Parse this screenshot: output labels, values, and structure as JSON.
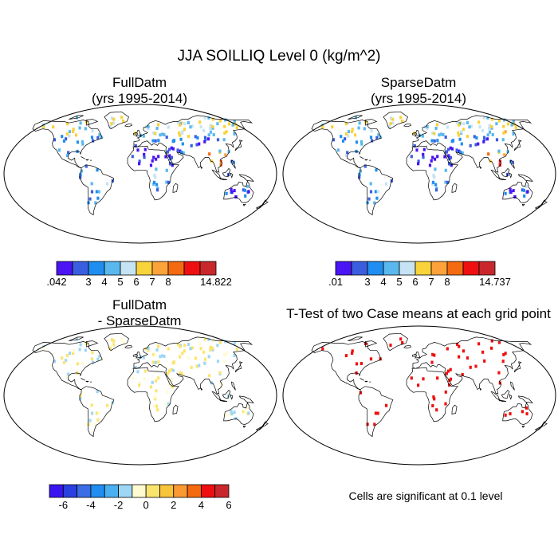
{
  "figure_title": "JJA SOILLIQ Level 0 (kg/m^2)",
  "panels": [
    {
      "title_line1": "FullDatm",
      "title_line2": "(yrs 1995-2014)"
    },
    {
      "title_line1": "SparseDatm",
      "title_line2": "(yrs 1995-2014)"
    },
    {
      "title_line1": "FullDatm",
      "title_line2": "- SparseDatm"
    },
    {
      "title_line1": "T-Test of two Case means at each grid point",
      "title_line2": ""
    }
  ],
  "colorbars": {
    "full": {
      "colors": [
        "#4a14f4",
        "#3b5ee0",
        "#1f8ef0",
        "#5ab8ee",
        "#c6e3f4",
        "#f8d33a",
        "#fba23a",
        "#f46a10",
        "#ee1010",
        "#c8282c"
      ],
      "labels": [
        ".042",
        "3",
        "4",
        "5",
        "6",
        "7",
        "8",
        "14.822"
      ],
      "label_slots": [
        0,
        2,
        3,
        4,
        5,
        6,
        7,
        10
      ]
    },
    "sparse": {
      "colors": [
        "#4a14f4",
        "#3b5ee0",
        "#1f8ef0",
        "#5ab8ee",
        "#c6e3f4",
        "#f8d33a",
        "#fba23a",
        "#f46a10",
        "#ee1010",
        "#c8282c"
      ],
      "labels": [
        ".01",
        "3",
        "4",
        "5",
        "6",
        "7",
        "8",
        "14.737"
      ],
      "label_slots": [
        0,
        2,
        3,
        4,
        5,
        6,
        7,
        10
      ]
    },
    "diff": {
      "colors": [
        "#3a14f0",
        "#2a40e0",
        "#3b6de6",
        "#1f8ef0",
        "#4ab0f0",
        "#9ed6f6",
        "#fffbd0",
        "#fbe46e",
        "#f8c43a",
        "#fb9a32",
        "#f46a10",
        "#ee1010",
        "#c8282c"
      ],
      "labels": [
        "-6",
        "-4",
        "-2",
        "0",
        "2",
        "4",
        "6"
      ],
      "label_slots": [
        1,
        3,
        5,
        7,
        9,
        11,
        13
      ]
    }
  },
  "footnote": "Cells are significant at 0.1 level",
  "chart_data": [
    {
      "type": "heatmap",
      "title": "FullDatm (yrs 1995-2014)",
      "projection": "robinson",
      "colorbar_levels": [
        0.042,
        3,
        4,
        5,
        6,
        7,
        8,
        14.822
      ]
    },
    {
      "type": "heatmap",
      "title": "SparseDatm (yrs 1995-2014)",
      "projection": "robinson",
      "colorbar_levels": [
        0.01,
        3,
        4,
        5,
        6,
        7,
        8,
        14.737
      ]
    },
    {
      "type": "heatmap",
      "title": "FullDatm - SparseDatm",
      "projection": "robinson",
      "colorbar_ticks": [
        -6,
        -4,
        -2,
        0,
        2,
        4,
        6
      ]
    },
    {
      "type": "heatmap",
      "title": "T-Test of two Case means at each grid point",
      "projection": "robinson",
      "significance_level": 0.1,
      "significant_color": "#ee1010"
    }
  ]
}
